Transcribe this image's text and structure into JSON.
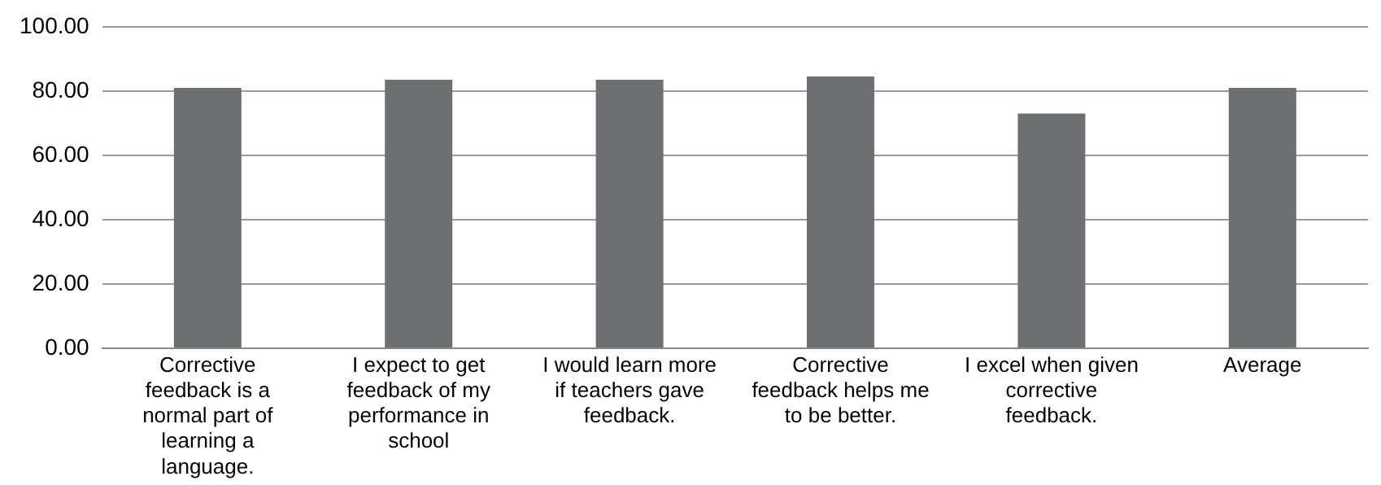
{
  "chart_data": {
    "type": "bar",
    "categories": [
      "Corrective feedback is a normal part of learning a language.",
      "I expect to get feedback of my performance in school",
      "I would learn more if teachers gave feedback.",
      "Corrective feedback helps me to be better.",
      "I excel when given corrective feedback.",
      "Average"
    ],
    "values": [
      81,
      83.5,
      83.5,
      84.5,
      73,
      81
    ],
    "color": "#6d7070",
    "ylim": [
      0,
      100
    ],
    "yticks": [
      {
        "value": 0,
        "label": "0.00"
      },
      {
        "value": 20,
        "label": "20.00"
      },
      {
        "value": 40,
        "label": "40.00"
      },
      {
        "value": 60,
        "label": "60.00"
      },
      {
        "value": 80,
        "label": "80.00"
      },
      {
        "value": 100,
        "label": "100.00"
      }
    ],
    "grid": "y"
  }
}
